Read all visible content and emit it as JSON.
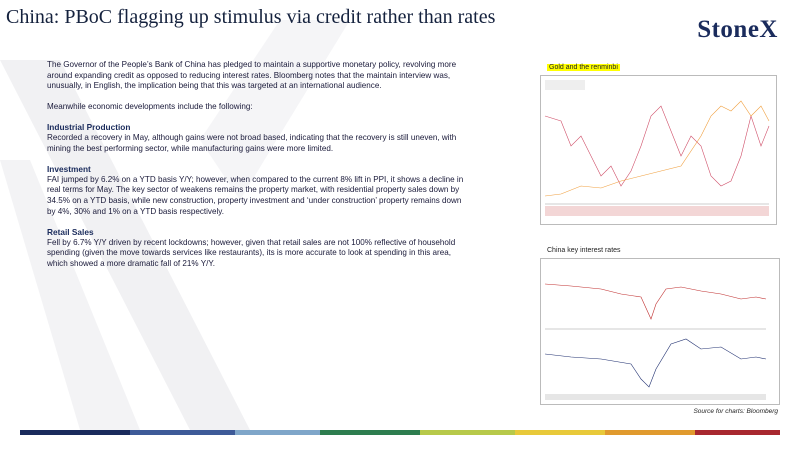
{
  "header": {
    "title": "China: PBoC flagging up stimulus via credit rather than rates",
    "logo": "StoneX"
  },
  "intro": [
    "The Governor of the People’s Bank of China has pledged to maintain a supportive monetary policy, revolving more around expanding credit as opposed to reducing interest rates.  Bloomberg notes that the maintain interview was, unusually, in English, the implication being that this was targeted at an international audience.",
    "Meanwhile economic developments  include the following:"
  ],
  "sections": [
    {
      "heading": "Industrial Production",
      "text": "Recorded a recovery in  May, although gains were not broad based, indicating that the recovery is still uneven, with mining the best performing  sector, while manufacturing gains were more limited."
    },
    {
      "heading": "Investment",
      "text": "FAI jumped by 6.2% on a YTD basis Y/Y; however, when compared to the current 8% lift in PPI, it shows a decline in real terms for May. The key sector of weakens remains the property market, with residential property sales down by 34.5% on a YTD basis, while new construction, property investment and ‘under construction’ property remains down by 4%, 30% and 1% on a YTD basis respectively."
    },
    {
      "heading": "Retail Sales",
      "text": "Fell by 6.7% Y/Y driven by recent lockdowns; however, given that retail sales are not 100% reflective of household spending (given the move towards services like restaurants), its is more accurate to look at spending in this area, which showed a more dramatic fall of 21% Y/Y."
    }
  ],
  "charts": [
    {
      "title": "Gold and the renminbi"
    },
    {
      "title": "China key interest rates"
    }
  ],
  "source": "Source for charts: Bloomberg"
}
